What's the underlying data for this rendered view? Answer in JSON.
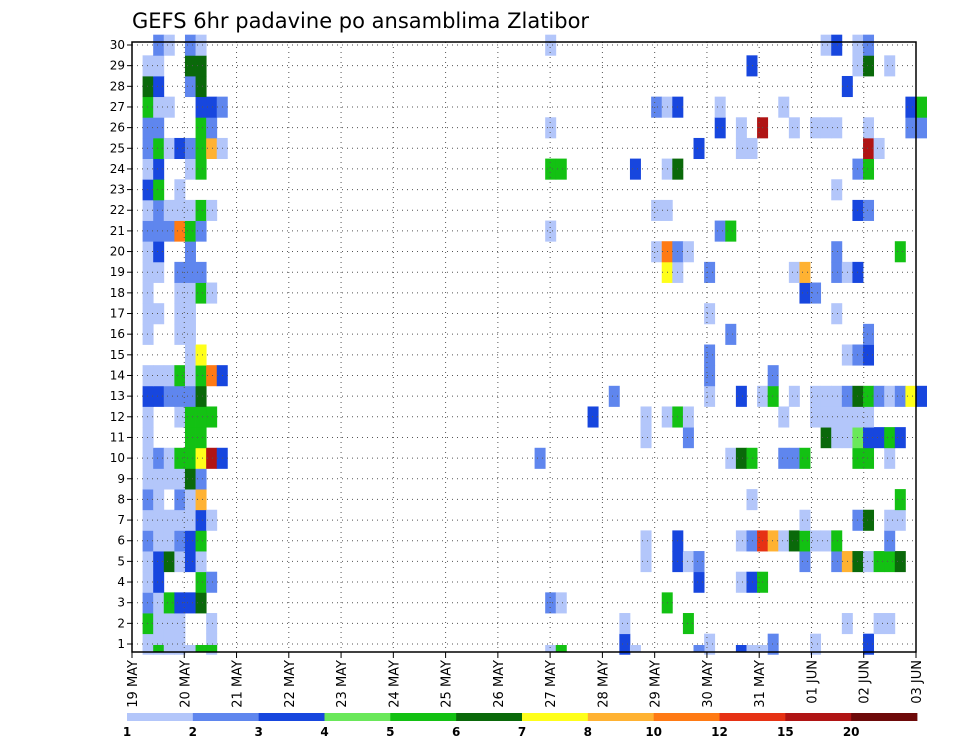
{
  "chart_data": {
    "type": "heatmap",
    "title": "GEFS 6hr padavine po ansamblima Zlatibor",
    "xlabel": "",
    "ylabel": "",
    "x_tick_labels": [
      "19 MAY",
      "20 MAY",
      "21 MAY",
      "22 MAY",
      "23 MAY",
      "24 MAY",
      "25 MAY",
      "26 MAY",
      "27 MAY",
      "28 MAY",
      "29 MAY",
      "30 MAY",
      "31 MAY",
      "01 JUN",
      "02 JUN",
      "03 JUN"
    ],
    "y_tick_labels": [
      "1",
      "2",
      "3",
      "4",
      "5",
      "6",
      "7",
      "8",
      "9",
      "10",
      "11",
      "12",
      "13",
      "14",
      "15",
      "16",
      "17",
      "18",
      "19",
      "20",
      "21",
      "22",
      "23",
      "24",
      "25",
      "26",
      "27",
      "28",
      "29",
      "30"
    ],
    "ylim": [
      1,
      30
    ],
    "grid": true,
    "colorbar_labels": [
      "1",
      "2",
      "3",
      "4",
      "5",
      "6",
      "7",
      "8",
      "10",
      "12",
      "15",
      "20"
    ],
    "colorbar_colors": [
      "#b3c6fa",
      "#5f86ee",
      "#1746de",
      "#6ae85a",
      "#13c113",
      "#0a690a",
      "#ffff1a",
      "#ffb232",
      "#ff7a14",
      "#e63214",
      "#b01414",
      "#6e0a0a"
    ],
    "cells": [
      [
        1,
        1,
        1
      ],
      [
        1,
        2,
        1
      ],
      [
        1,
        3,
        1
      ],
      [
        1,
        4,
        1
      ],
      [
        1,
        7,
        1
      ],
      [
        1,
        46,
        3
      ],
      [
        1,
        54,
        1
      ],
      [
        1,
        60,
        2
      ],
      [
        1,
        64,
        1
      ],
      [
        1,
        69,
        3
      ],
      [
        2,
        1,
        5
      ],
      [
        2,
        2,
        1
      ],
      [
        2,
        3,
        1
      ],
      [
        2,
        4,
        1
      ],
      [
        2,
        7,
        1
      ],
      [
        2,
        46,
        1
      ],
      [
        2,
        52,
        5
      ],
      [
        2,
        67,
        1
      ],
      [
        2,
        70,
        1
      ],
      [
        2,
        71,
        1
      ],
      [
        3,
        1,
        2
      ],
      [
        3,
        2,
        1
      ],
      [
        3,
        3,
        5
      ],
      [
        3,
        4,
        3
      ],
      [
        3,
        5,
        3
      ],
      [
        3,
        6,
        6
      ],
      [
        3,
        39,
        2
      ],
      [
        3,
        40,
        1
      ],
      [
        3,
        50,
        5
      ],
      [
        4,
        1,
        1
      ],
      [
        4,
        2,
        3
      ],
      [
        4,
        6,
        5
      ],
      [
        4,
        7,
        2
      ],
      [
        4,
        53,
        3
      ],
      [
        4,
        57,
        1
      ],
      [
        4,
        58,
        3
      ],
      [
        4,
        59,
        5
      ],
      [
        5,
        1,
        1
      ],
      [
        5,
        2,
        3
      ],
      [
        5,
        3,
        6
      ],
      [
        5,
        4,
        1
      ],
      [
        5,
        5,
        3
      ],
      [
        5,
        6,
        1
      ],
      [
        5,
        48,
        1
      ],
      [
        5,
        51,
        3
      ],
      [
        5,
        52,
        1
      ],
      [
        5,
        53,
        2
      ],
      [
        5,
        63,
        2
      ],
      [
        5,
        66,
        2
      ],
      [
        5,
        67,
        8
      ],
      [
        5,
        68,
        6
      ],
      [
        5,
        69,
        1
      ],
      [
        5,
        70,
        5
      ],
      [
        5,
        71,
        5
      ],
      [
        5,
        72,
        6
      ],
      [
        6,
        1,
        2
      ],
      [
        6,
        2,
        1
      ],
      [
        6,
        3,
        1
      ],
      [
        6,
        4,
        2
      ],
      [
        6,
        5,
        3
      ],
      [
        6,
        6,
        5
      ],
      [
        6,
        48,
        1
      ],
      [
        6,
        51,
        3
      ],
      [
        6,
        57,
        1
      ],
      [
        6,
        58,
        2
      ],
      [
        6,
        59,
        10
      ],
      [
        6,
        60,
        8
      ],
      [
        6,
        61,
        1
      ],
      [
        6,
        62,
        6
      ],
      [
        6,
        63,
        5
      ],
      [
        6,
        64,
        1
      ],
      [
        6,
        65,
        1
      ],
      [
        6,
        66,
        5
      ],
      [
        6,
        71,
        2
      ],
      [
        7,
        1,
        1
      ],
      [
        7,
        2,
        1
      ],
      [
        7,
        3,
        1
      ],
      [
        7,
        4,
        1
      ],
      [
        7,
        5,
        1
      ],
      [
        7,
        6,
        3
      ],
      [
        7,
        7,
        1
      ],
      [
        7,
        63,
        1
      ],
      [
        7,
        68,
        2
      ],
      [
        7,
        69,
        6
      ],
      [
        7,
        71,
        1
      ],
      [
        7,
        72,
        1
      ],
      [
        8,
        1,
        2
      ],
      [
        8,
        2,
        1
      ],
      [
        8,
        4,
        2
      ],
      [
        8,
        5,
        1
      ],
      [
        8,
        6,
        8
      ],
      [
        8,
        58,
        1
      ],
      [
        8,
        72,
        5
      ],
      [
        9,
        1,
        1
      ],
      [
        9,
        2,
        1
      ],
      [
        9,
        3,
        1
      ],
      [
        9,
        4,
        1
      ],
      [
        9,
        5,
        6
      ],
      [
        9,
        6,
        2
      ],
      [
        10,
        1,
        1
      ],
      [
        10,
        2,
        2
      ],
      [
        10,
        3,
        1
      ],
      [
        10,
        4,
        5
      ],
      [
        10,
        5,
        5
      ],
      [
        10,
        6,
        7
      ],
      [
        10,
        7,
        11
      ],
      [
        10,
        8,
        3
      ],
      [
        10,
        38,
        2
      ],
      [
        10,
        56,
        1
      ],
      [
        10,
        57,
        6
      ],
      [
        10,
        58,
        5
      ],
      [
        10,
        61,
        2
      ],
      [
        10,
        62,
        2
      ],
      [
        10,
        63,
        5
      ],
      [
        10,
        68,
        5
      ],
      [
        10,
        69,
        5
      ],
      [
        10,
        71,
        1
      ],
      [
        11,
        1,
        1
      ],
      [
        11,
        5,
        5
      ],
      [
        11,
        6,
        5
      ],
      [
        11,
        48,
        1
      ],
      [
        11,
        52,
        2
      ],
      [
        11,
        65,
        6
      ],
      [
        11,
        66,
        1
      ],
      [
        11,
        67,
        1
      ],
      [
        11,
        68,
        4
      ],
      [
        11,
        69,
        3
      ],
      [
        11,
        70,
        3
      ],
      [
        11,
        71,
        5
      ],
      [
        11,
        72,
        3
      ],
      [
        12,
        1,
        1
      ],
      [
        12,
        4,
        1
      ],
      [
        12,
        5,
        5
      ],
      [
        12,
        6,
        5
      ],
      [
        12,
        7,
        5
      ],
      [
        12,
        43,
        3
      ],
      [
        12,
        48,
        1
      ],
      [
        12,
        50,
        1
      ],
      [
        12,
        51,
        5
      ],
      [
        12,
        52,
        1
      ],
      [
        12,
        61,
        1
      ],
      [
        12,
        64,
        1
      ],
      [
        12,
        65,
        1
      ],
      [
        12,
        66,
        1
      ],
      [
        12,
        67,
        1
      ],
      [
        12,
        68,
        1
      ],
      [
        12,
        69,
        1
      ],
      [
        13,
        1,
        3
      ],
      [
        13,
        2,
        3
      ],
      [
        13,
        3,
        2
      ],
      [
        13,
        4,
        2
      ],
      [
        13,
        5,
        2
      ],
      [
        13,
        6,
        6
      ],
      [
        13,
        45,
        2
      ],
      [
        13,
        54,
        1
      ],
      [
        13,
        57,
        3
      ],
      [
        13,
        59,
        1
      ],
      [
        13,
        60,
        5
      ],
      [
        13,
        62,
        1
      ],
      [
        13,
        64,
        1
      ],
      [
        13,
        65,
        1
      ],
      [
        13,
        66,
        1
      ],
      [
        13,
        67,
        2
      ],
      [
        13,
        68,
        6
      ],
      [
        13,
        69,
        5
      ],
      [
        13,
        70,
        2
      ],
      [
        13,
        71,
        1
      ],
      [
        13,
        72,
        2
      ],
      [
        13,
        73,
        7
      ],
      [
        13,
        74,
        3
      ],
      [
        14,
        1,
        1
      ],
      [
        14,
        2,
        1
      ],
      [
        14,
        3,
        1
      ],
      [
        14,
        4,
        5
      ],
      [
        14,
        5,
        1
      ],
      [
        14,
        6,
        5
      ],
      [
        14,
        7,
        9
      ],
      [
        14,
        8,
        3
      ],
      [
        14,
        54,
        2
      ],
      [
        14,
        60,
        2
      ],
      [
        15,
        5,
        1
      ],
      [
        15,
        6,
        7
      ],
      [
        15,
        54,
        2
      ],
      [
        15,
        67,
        1
      ],
      [
        15,
        68,
        2
      ],
      [
        15,
        69,
        3
      ],
      [
        16,
        1,
        1
      ],
      [
        16,
        4,
        1
      ],
      [
        16,
        5,
        1
      ],
      [
        16,
        56,
        2
      ],
      [
        16,
        69,
        2
      ],
      [
        17,
        1,
        1
      ],
      [
        17,
        2,
        1
      ],
      [
        17,
        4,
        1
      ],
      [
        17,
        5,
        1
      ],
      [
        17,
        54,
        1
      ],
      [
        17,
        66,
        1
      ],
      [
        18,
        1,
        1
      ],
      [
        18,
        4,
        1
      ],
      [
        18,
        5,
        1
      ],
      [
        18,
        6,
        5
      ],
      [
        18,
        7,
        1
      ],
      [
        18,
        63,
        3
      ],
      [
        18,
        64,
        2
      ],
      [
        19,
        1,
        1
      ],
      [
        19,
        2,
        1
      ],
      [
        19,
        4,
        2
      ],
      [
        19,
        5,
        2
      ],
      [
        19,
        6,
        2
      ],
      [
        19,
        50,
        7
      ],
      [
        19,
        51,
        1
      ],
      [
        19,
        54,
        2
      ],
      [
        19,
        62,
        1
      ],
      [
        19,
        63,
        8
      ],
      [
        19,
        66,
        2
      ],
      [
        19,
        67,
        1
      ],
      [
        19,
        68,
        3
      ],
      [
        20,
        1,
        1
      ],
      [
        20,
        2,
        3
      ],
      [
        20,
        5,
        2
      ],
      [
        20,
        49,
        1
      ],
      [
        20,
        50,
        9
      ],
      [
        20,
        51,
        2
      ],
      [
        20,
        52,
        1
      ],
      [
        20,
        66,
        2
      ],
      [
        20,
        72,
        5
      ],
      [
        21,
        1,
        2
      ],
      [
        21,
        2,
        2
      ],
      [
        21,
        3,
        2
      ],
      [
        21,
        4,
        9
      ],
      [
        21,
        5,
        5
      ],
      [
        21,
        6,
        2
      ],
      [
        21,
        39,
        1
      ],
      [
        21,
        55,
        2
      ],
      [
        21,
        56,
        5
      ],
      [
        22,
        1,
        1
      ],
      [
        22,
        2,
        2
      ],
      [
        22,
        3,
        1
      ],
      [
        22,
        4,
        1
      ],
      [
        22,
        5,
        1
      ],
      [
        22,
        6,
        5
      ],
      [
        22,
        7,
        1
      ],
      [
        22,
        49,
        1
      ],
      [
        22,
        50,
        1
      ],
      [
        22,
        68,
        3
      ],
      [
        22,
        69,
        2
      ],
      [
        23,
        1,
        3
      ],
      [
        23,
        2,
        5
      ],
      [
        23,
        4,
        1
      ],
      [
        23,
        66,
        1
      ],
      [
        24,
        1,
        1
      ],
      [
        24,
        2,
        3
      ],
      [
        24,
        5,
        1
      ],
      [
        24,
        6,
        5
      ],
      [
        24,
        39,
        5
      ],
      [
        24,
        40,
        5
      ],
      [
        24,
        47,
        3
      ],
      [
        24,
        50,
        1
      ],
      [
        24,
        51,
        6
      ],
      [
        24,
        68,
        2
      ],
      [
        24,
        69,
        5
      ],
      [
        25,
        1,
        2
      ],
      [
        25,
        2,
        5
      ],
      [
        25,
        3,
        1
      ],
      [
        25,
        4,
        3
      ],
      [
        25,
        5,
        2
      ],
      [
        25,
        6,
        5
      ],
      [
        25,
        7,
        8
      ],
      [
        25,
        8,
        1
      ],
      [
        25,
        53,
        3
      ],
      [
        25,
        57,
        1
      ],
      [
        25,
        58,
        1
      ],
      [
        25,
        69,
        11
      ],
      [
        25,
        70,
        1
      ],
      [
        26,
        1,
        2
      ],
      [
        26,
        2,
        2
      ],
      [
        26,
        6,
        5
      ],
      [
        26,
        7,
        2
      ],
      [
        26,
        39,
        1
      ],
      [
        26,
        55,
        3
      ],
      [
        26,
        57,
        1
      ],
      [
        26,
        59,
        11
      ],
      [
        26,
        62,
        1
      ],
      [
        26,
        64,
        1
      ],
      [
        26,
        65,
        1
      ],
      [
        26,
        66,
        1
      ],
      [
        26,
        69,
        1
      ],
      [
        26,
        73,
        2
      ],
      [
        26,
        74,
        2
      ],
      [
        27,
        1,
        5
      ],
      [
        27,
        2,
        1
      ],
      [
        27,
        3,
        1
      ],
      [
        27,
        6,
        3
      ],
      [
        27,
        7,
        3
      ],
      [
        27,
        8,
        2
      ],
      [
        27,
        49,
        2
      ],
      [
        27,
        50,
        1
      ],
      [
        27,
        51,
        3
      ],
      [
        27,
        55,
        1
      ],
      [
        27,
        61,
        1
      ],
      [
        27,
        73,
        3
      ],
      [
        27,
        74,
        5
      ],
      [
        28,
        1,
        6
      ],
      [
        28,
        2,
        3
      ],
      [
        28,
        5,
        2
      ],
      [
        28,
        6,
        6
      ],
      [
        28,
        67,
        3
      ],
      [
        29,
        1,
        1
      ],
      [
        29,
        2,
        1
      ],
      [
        29,
        5,
        6
      ],
      [
        29,
        6,
        6
      ],
      [
        29,
        58,
        3
      ],
      [
        29,
        68,
        1
      ],
      [
        29,
        69,
        6
      ],
      [
        29,
        71,
        1
      ],
      [
        30,
        2,
        2
      ],
      [
        30,
        3,
        1
      ],
      [
        30,
        5,
        2
      ],
      [
        30,
        6,
        1
      ],
      [
        30,
        39,
        1
      ],
      [
        30,
        65,
        1
      ],
      [
        30,
        66,
        3
      ],
      [
        30,
        68,
        1
      ],
      [
        30,
        69,
        2
      ]
    ],
    "bottom_strip": [
      [
        1,
        1
      ],
      [
        2,
        5
      ],
      [
        3,
        1
      ],
      [
        4,
        1
      ],
      [
        5,
        1
      ],
      [
        6,
        5
      ],
      [
        7,
        5
      ],
      [
        39,
        1
      ],
      [
        40,
        5
      ],
      [
        47,
        1
      ],
      [
        53,
        2
      ],
      [
        57,
        3
      ],
      [
        58,
        1
      ],
      [
        59,
        1
      ]
    ]
  }
}
